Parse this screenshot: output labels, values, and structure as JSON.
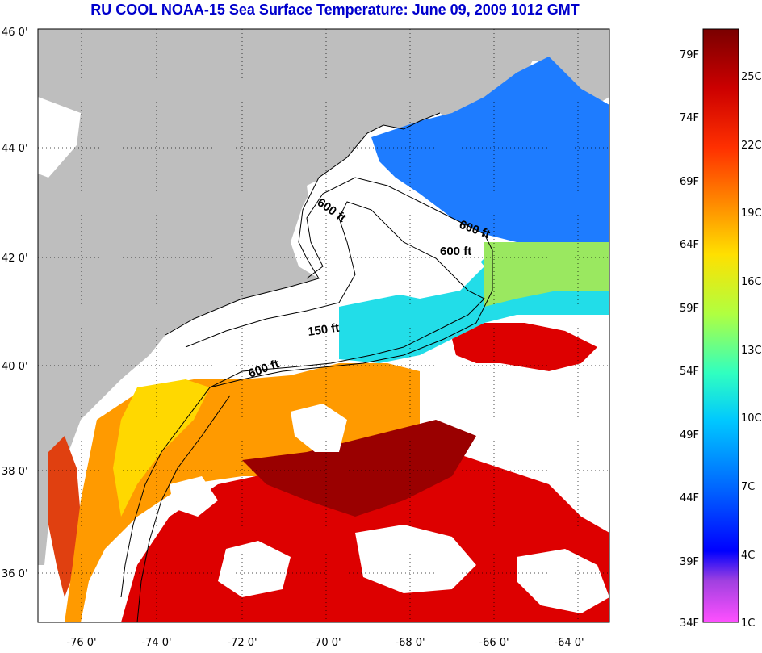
{
  "title": "RU COOL  NOAA-15  Sea Surface Temperature:  June 09, 2009 1012 GMT",
  "map": {
    "lat_labels": [
      "46 0'",
      "44 0'",
      "42 0'",
      "40 0'",
      "38 0'",
      "36 0'"
    ],
    "lon_labels": [
      "-76 0'",
      "-74 0'",
      "-72 0'",
      "-70 0'",
      "-68 0'",
      "-66 0'",
      "-64 0'"
    ],
    "contours": [
      {
        "label": "600 ft"
      },
      {
        "label": "600 ft"
      },
      {
        "label": "600 ft"
      },
      {
        "label": "150 ft"
      },
      {
        "label": "600 ft"
      }
    ],
    "colors": {
      "land": "#bebebe",
      "cloud": "#ffffff",
      "cold_water": "#1e7cff",
      "cool_water": "#22dde8",
      "warm_water": "#ff9a00",
      "hot_water": "#dd0000",
      "gulf_stream": "#9a0000"
    }
  },
  "colorbar": {
    "fahrenheit": [
      "79F",
      "74F",
      "69F",
      "64F",
      "59F",
      "54F",
      "49F",
      "44F",
      "39F",
      "34F"
    ],
    "celsius": [
      "25C",
      "22C",
      "19C",
      "16C",
      "13C",
      "10C",
      "7C",
      "4C",
      "1C"
    ],
    "colors_top_to_bottom": [
      "#800000",
      "#ff0000",
      "#ff8000",
      "#ffff00",
      "#80ff80",
      "#00ffff",
      "#0080ff",
      "#0000ff",
      "#ff50ff"
    ]
  }
}
